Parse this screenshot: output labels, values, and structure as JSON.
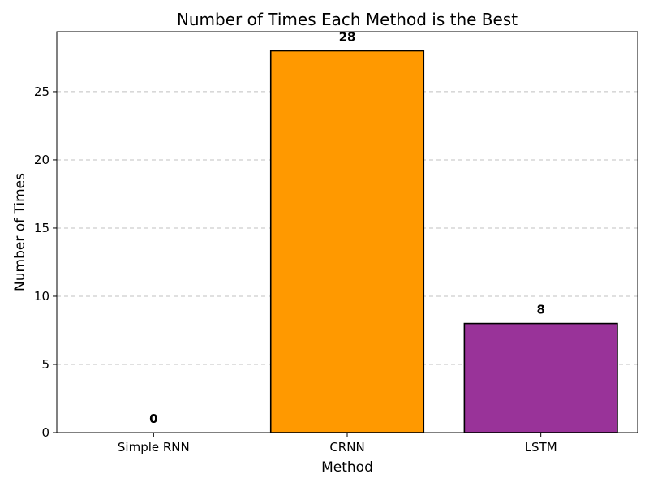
{
  "chart_data": {
    "type": "bar",
    "title": "Number of Times Each Method is the Best",
    "xlabel": "Method",
    "ylabel": "Number of Times",
    "categories": [
      "Simple RNN",
      "CRNN",
      "LSTM"
    ],
    "values": [
      0,
      28,
      8
    ],
    "value_labels": [
      "0",
      "28",
      "8"
    ],
    "colors": [
      "#1f77b4",
      "#ff9900",
      "#993399"
    ],
    "ylim": [
      0,
      29.4
    ],
    "yticks": [
      0,
      5,
      10,
      15,
      20,
      25
    ],
    "ytick_labels": [
      "0",
      "5",
      "10",
      "15",
      "20",
      "25"
    ],
    "grid": "y-dashed",
    "legend": "none"
  }
}
